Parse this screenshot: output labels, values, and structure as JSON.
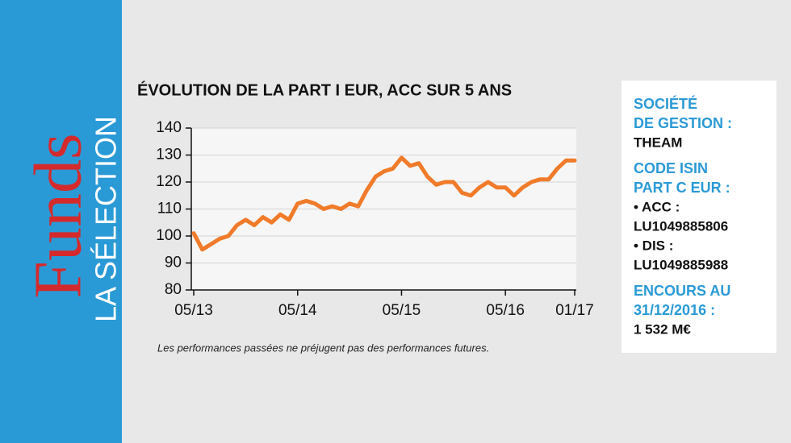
{
  "brand": {
    "name": "Funds",
    "tagline": "LA SÉLECTION"
  },
  "chart_data": {
    "type": "line",
    "title": "ÉVOLUTION DE LA PART I EUR, ACC SUR 5 ANS",
    "categories": [
      "05/13",
      null,
      null,
      null,
      null,
      null,
      null,
      null,
      null,
      null,
      null,
      null,
      "05/14",
      null,
      null,
      null,
      null,
      null,
      null,
      null,
      null,
      null,
      null,
      null,
      "05/15",
      null,
      null,
      null,
      null,
      null,
      null,
      null,
      null,
      null,
      null,
      null,
      "05/16",
      null,
      null,
      null,
      null,
      null,
      null,
      null,
      "01/17"
    ],
    "values": [
      101,
      95,
      97,
      99,
      100,
      104,
      106,
      104,
      107,
      105,
      108,
      106,
      112,
      113,
      112,
      110,
      111,
      110,
      112,
      111,
      117,
      122,
      124,
      125,
      129,
      126,
      127,
      122,
      119,
      120,
      120,
      116,
      115,
      118,
      120,
      118,
      118,
      115,
      118,
      120,
      121,
      121,
      125,
      128,
      128
    ],
    "color": "#f07b2a",
    "ylim": [
      80,
      140
    ],
    "yticks": [
      80,
      90,
      100,
      110,
      120,
      130,
      140
    ],
    "grid": true,
    "note": "Les performances passées ne préjugent pas des performances futures."
  },
  "panel": {
    "sections": [
      {
        "label": [
          "SOCIÉTÉ",
          "DE GESTION :"
        ],
        "value": [
          "THEAM"
        ]
      },
      {
        "label": [
          "CODE ISIN",
          "PART C EUR :"
        ],
        "value": [
          "• ACC :",
          "LU1049885806",
          "• DIS :",
          "LU1049885988"
        ]
      },
      {
        "label": [
          "ENCOURS AU",
          "31/12/2016 :"
        ],
        "value": [
          "1 532 M€"
        ]
      }
    ]
  }
}
